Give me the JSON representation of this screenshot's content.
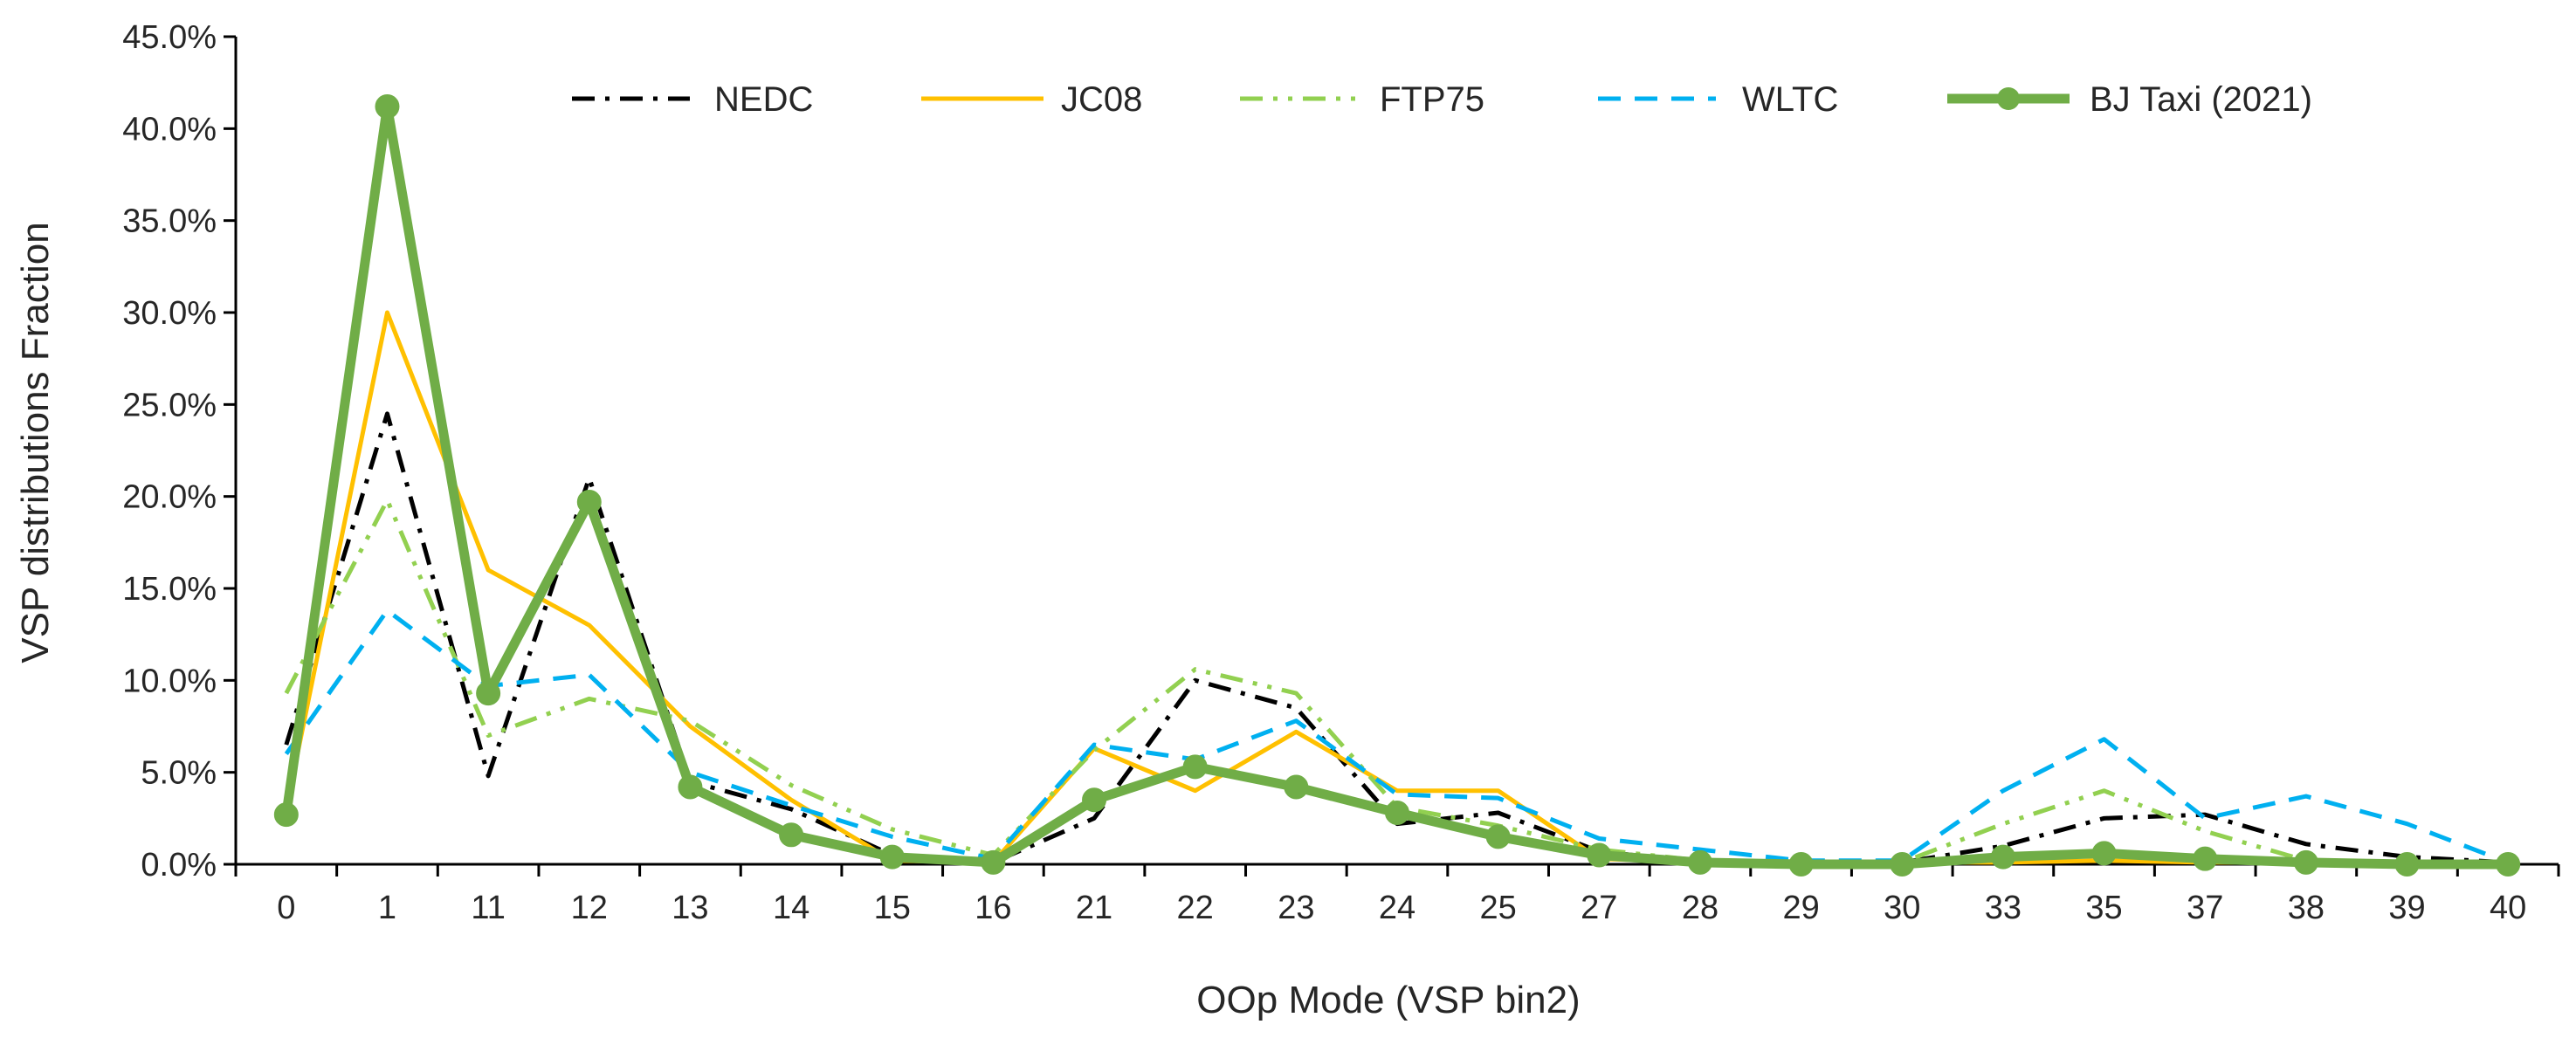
{
  "chart_data": {
    "type": "line",
    "title": "",
    "xlabel": "OOp Mode (VSP bin2)",
    "ylabel": "VSP distributions Fraction",
    "ylim": [
      0,
      45
    ],
    "y_ticks": [
      "0.0%",
      "5.0%",
      "10.0%",
      "15.0%",
      "20.0%",
      "25.0%",
      "30.0%",
      "35.0%",
      "40.0%",
      "45.0%"
    ],
    "y_tick_values": [
      0,
      5,
      10,
      15,
      20,
      25,
      30,
      35,
      40,
      45
    ],
    "categories": [
      "0",
      "1",
      "11",
      "12",
      "13",
      "14",
      "15",
      "16",
      "21",
      "22",
      "23",
      "24",
      "25",
      "27",
      "28",
      "29",
      "30",
      "33",
      "35",
      "37",
      "38",
      "39",
      "40"
    ],
    "legend_position": "top",
    "series": [
      {
        "name": "NEDC",
        "color": "#000000",
        "style": "dash-dot",
        "values": [
          6.5,
          24.5,
          4.8,
          21.0,
          4.5,
          3.0,
          0.5,
          0.1,
          2.5,
          10.0,
          8.5,
          2.2,
          2.8,
          0.7,
          0.1,
          0.1,
          0.1,
          1.0,
          2.5,
          2.7,
          1.1,
          0.4,
          0.1
        ]
      },
      {
        "name": "JC08",
        "color": "#FFC000",
        "style": "solid",
        "values": [
          3.0,
          30.0,
          16.0,
          13.0,
          7.5,
          3.5,
          0.2,
          0.1,
          6.3,
          4.0,
          7.2,
          4.0,
          4.0,
          0.3,
          0.1,
          0.1,
          0.1,
          0.1,
          0.2,
          0.1,
          0.1,
          0.1,
          0.1
        ]
      },
      {
        "name": "FTP75",
        "color": "#92D050",
        "style": "dash-dot-dot",
        "values": [
          9.3,
          19.8,
          7.0,
          9.0,
          7.8,
          4.3,
          1.9,
          0.5,
          6.2,
          10.6,
          9.3,
          3.1,
          2.1,
          0.8,
          0.2,
          0.1,
          0.1,
          2.2,
          4.0,
          1.8,
          0.2,
          0.1,
          0.1
        ]
      },
      {
        "name": "WLTC",
        "color": "#00B0F0",
        "style": "dash",
        "values": [
          6.0,
          13.8,
          9.7,
          10.3,
          5.0,
          3.2,
          1.5,
          0.3,
          6.5,
          5.7,
          7.8,
          3.8,
          3.6,
          1.4,
          0.8,
          0.2,
          0.2,
          4.0,
          6.8,
          2.5,
          3.7,
          2.2,
          0.1
        ]
      },
      {
        "name": "BJ Taxi (2021)",
        "color": "#70AD47",
        "style": "solid-marker",
        "values": [
          2.7,
          41.2,
          9.3,
          19.7,
          4.2,
          1.6,
          0.4,
          0.1,
          3.5,
          5.3,
          4.2,
          2.8,
          1.5,
          0.5,
          0.1,
          0.0,
          0.0,
          0.4,
          0.6,
          0.3,
          0.1,
          0.0,
          0.0
        ]
      }
    ]
  }
}
